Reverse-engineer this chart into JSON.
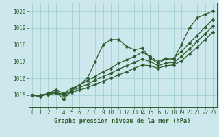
{
  "title": "Graphe pression niveau de la mer (hPa)",
  "bg_color": "#cce8ec",
  "grid_color": "#99cccc",
  "line_color": "#2d5a2d",
  "xlim": [
    -0.5,
    23.5
  ],
  "ylim": [
    1014.3,
    1020.5
  ],
  "yticks": [
    1015,
    1016,
    1017,
    1018,
    1019,
    1020
  ],
  "xticks": [
    0,
    1,
    2,
    3,
    4,
    5,
    6,
    7,
    8,
    9,
    10,
    11,
    12,
    13,
    14,
    15,
    16,
    17,
    18,
    19,
    20,
    21,
    22,
    23
  ],
  "series": [
    {
      "x": [
        0,
        1,
        2,
        3,
        4,
        5,
        6,
        7,
        8,
        9,
        10,
        11,
        12,
        13,
        14,
        15,
        16,
        17,
        18,
        19,
        20,
        21,
        22,
        23
      ],
      "y": [
        1015.0,
        1014.9,
        1015.1,
        1015.2,
        1014.75,
        1015.3,
        1015.6,
        1016.0,
        1017.0,
        1018.0,
        1018.3,
        1018.3,
        1017.9,
        1017.7,
        1017.8,
        1017.2,
        1016.9,
        1017.15,
        1017.15,
        1018.0,
        1019.0,
        1019.6,
        1019.8,
        1020.0
      ]
    },
    {
      "x": [
        0,
        1,
        2,
        3,
        4,
        5,
        6,
        7,
        8,
        9,
        10,
        11,
        12,
        13,
        14,
        15,
        16,
        17,
        18,
        19,
        20,
        21,
        22,
        23
      ],
      "y": [
        1015.0,
        1015.0,
        1015.1,
        1015.3,
        1015.1,
        1015.4,
        1015.6,
        1015.85,
        1016.1,
        1016.4,
        1016.6,
        1016.9,
        1017.1,
        1017.3,
        1017.55,
        1017.3,
        1017.0,
        1017.2,
        1017.2,
        1017.6,
        1018.1,
        1018.55,
        1019.05,
        1019.5
      ]
    },
    {
      "x": [
        0,
        1,
        2,
        3,
        4,
        5,
        6,
        7,
        8,
        9,
        10,
        11,
        12,
        13,
        14,
        15,
        16,
        17,
        18,
        19,
        20,
        21,
        22,
        23
      ],
      "y": [
        1015.0,
        1015.0,
        1015.05,
        1015.15,
        1015.05,
        1015.25,
        1015.45,
        1015.65,
        1015.9,
        1016.1,
        1016.3,
        1016.55,
        1016.75,
        1016.95,
        1017.15,
        1017.0,
        1016.75,
        1016.9,
        1016.95,
        1017.3,
        1017.75,
        1018.2,
        1018.65,
        1019.1
      ]
    },
    {
      "x": [
        0,
        1,
        2,
        3,
        4,
        5,
        6,
        7,
        8,
        9,
        10,
        11,
        12,
        13,
        14,
        15,
        16,
        17,
        18,
        19,
        20,
        21,
        22,
        23
      ],
      "y": [
        1015.0,
        1015.0,
        1015.05,
        1015.1,
        1015.0,
        1015.15,
        1015.3,
        1015.45,
        1015.65,
        1015.82,
        1016.0,
        1016.2,
        1016.4,
        1016.6,
        1016.8,
        1016.75,
        1016.6,
        1016.75,
        1016.8,
        1017.05,
        1017.45,
        1017.85,
        1018.3,
        1018.75
      ]
    }
  ]
}
